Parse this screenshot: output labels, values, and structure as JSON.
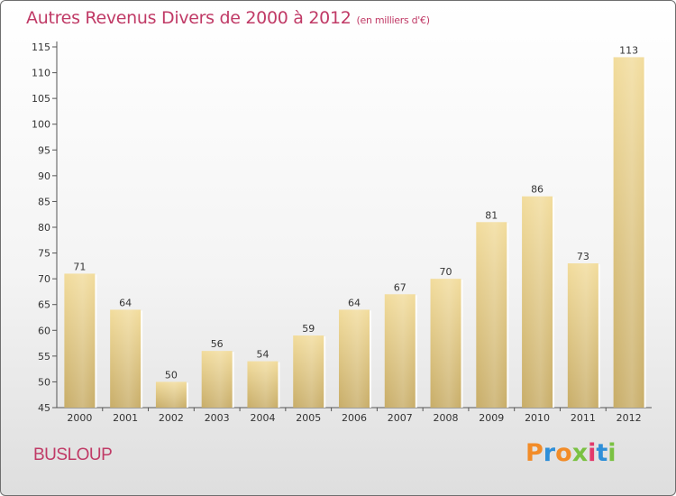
{
  "header": {
    "title": "Autres Revenus Divers de 2000 à 2012",
    "subtitle": "(en milliers d'€)"
  },
  "footer": {
    "place": "BUSLOUP",
    "logo": "Proxiti",
    "logo_colors": [
      "#f28c28",
      "#2f8fd8",
      "#f28c28",
      "#7ac142",
      "#e23a6b",
      "#2f8fd8",
      "#7ac142"
    ]
  },
  "chart_data": {
    "type": "bar",
    "categories": [
      "2000",
      "2001",
      "2002",
      "2003",
      "2004",
      "2005",
      "2006",
      "2007",
      "2008",
      "2009",
      "2010",
      "2011",
      "2012"
    ],
    "values": [
      71,
      64,
      50,
      56,
      54,
      59,
      64,
      67,
      70,
      81,
      86,
      73,
      113
    ],
    "ylim": [
      45,
      115
    ],
    "yticks": [
      45,
      50,
      55,
      60,
      65,
      70,
      75,
      80,
      85,
      90,
      95,
      100,
      105,
      110,
      115
    ],
    "grid": false,
    "bar_color": "#e8cd84",
    "value_labels": true
  }
}
